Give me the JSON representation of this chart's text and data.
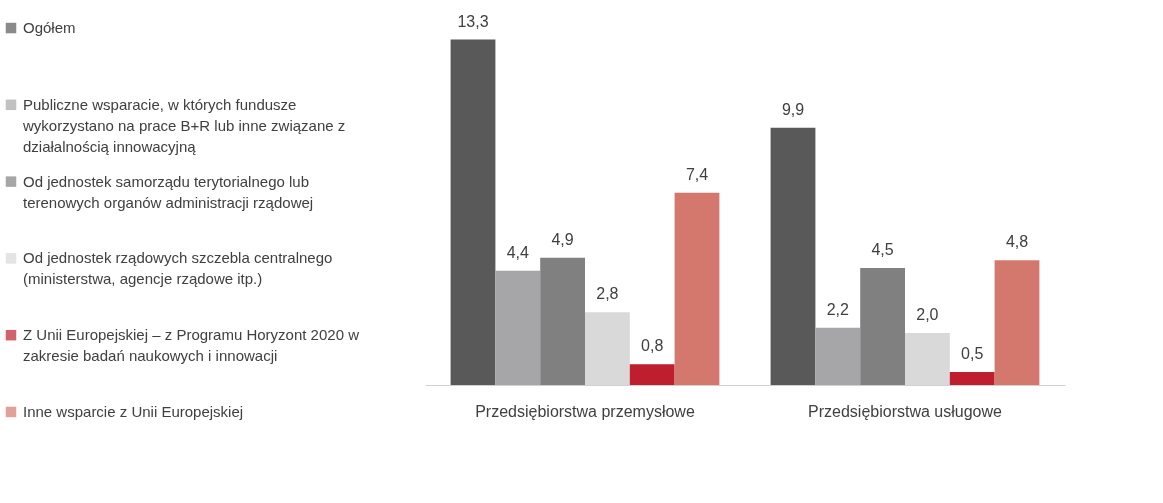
{
  "chart_data": {
    "type": "bar",
    "categories": [
      "Przedsiębiorstwa przemysłowe",
      "Przedsiębiorstwa usługowe"
    ],
    "series": [
      {
        "name": "Ogółem",
        "color": "#595959",
        "values": [
          13.3,
          9.9
        ],
        "value_labels": [
          "13,3",
          "9,9"
        ]
      },
      {
        "name": "Publiczne wsparacie, w których fundusze wykorzystano na prace B+R lub inne związane z działalnością innowacyjną",
        "color": "#a6a6a8",
        "values": [
          4.4,
          2.2
        ],
        "value_labels": [
          "4,4",
          "2,2"
        ]
      },
      {
        "name": "Od jednostek samorządu terytorialnego lub terenowych organów administracji rządowej",
        "color": "#808080",
        "values": [
          4.9,
          4.5
        ],
        "value_labels": [
          "4,9",
          "4,5"
        ]
      },
      {
        "name": "Od jednostek rządowych szczebla centralnego (ministerstwa, agencje rządowe itp.)",
        "color": "#d9d9d9",
        "values": [
          2.8,
          2.0
        ],
        "value_labels": [
          "2,8",
          "2,0"
        ]
      },
      {
        "name": "Z Unii Europejskiej – z Programu Horyzont 2020 w zakresie badań naukowych i innowacji",
        "color": "#be1e2d",
        "values": [
          0.8,
          0.5
        ],
        "value_labels": [
          "0,8",
          "0,5"
        ]
      },
      {
        "name": "Inne wsparcie z Unii Europejskiej",
        "color": "#d4786e",
        "values": [
          7.4,
          4.8
        ],
        "value_labels": [
          "7,4",
          "4,8"
        ]
      }
    ],
    "legend": "left",
    "grid": false
  }
}
